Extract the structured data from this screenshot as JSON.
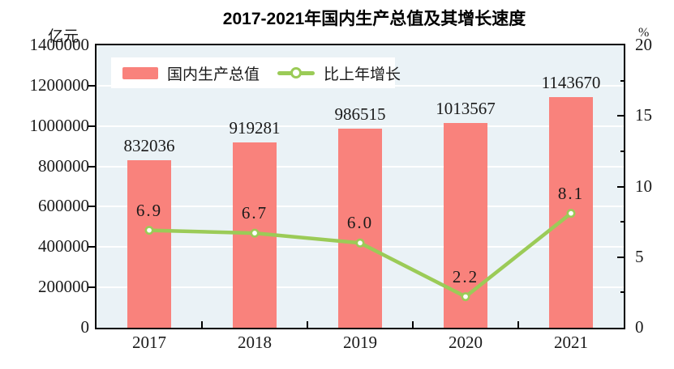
{
  "title": "2017-2021年国内生产总值及其增长速度",
  "left_unit": "亿元",
  "right_unit": "%",
  "chart_data": {
    "type": "bar",
    "subtype": "bar-and-line-dual-axis",
    "title": "2017-2021年国内生产总值及其增长速度",
    "categories": [
      "2017",
      "2018",
      "2019",
      "2020",
      "2021"
    ],
    "series": [
      {
        "name": "国内生产总值",
        "type": "bar",
        "axis": "left",
        "unit": "亿元",
        "values": [
          832036,
          919281,
          986515,
          1013567,
          1143670
        ],
        "value_labels": [
          "832036",
          "919281",
          "986515",
          "1013567",
          "1143670"
        ],
        "color": "#f9827c"
      },
      {
        "name": "比上年增长",
        "type": "line",
        "axis": "right",
        "unit": "%",
        "values": [
          6.9,
          6.7,
          6.0,
          2.2,
          8.1
        ],
        "value_labels": [
          "6.9",
          "6.7",
          "6.0",
          "2.2",
          "8.1"
        ],
        "color": "#9bcb57",
        "marker": "circle-white-fill"
      }
    ],
    "left_axis": {
      "label": "亿元",
      "min": 0,
      "max": 1400000,
      "tick_step": 200000,
      "tick_labels": [
        "0",
        "200000",
        "400000",
        "600000",
        "800000",
        "1000000",
        "1200000",
        "1400000"
      ]
    },
    "right_axis": {
      "label": "%",
      "min": 0,
      "max": 20,
      "tick_step": 5,
      "minor_tick_step": 2.5,
      "tick_labels": [
        "0",
        "5",
        "10",
        "15",
        "20"
      ]
    },
    "legend": [
      "国内生产总值",
      "比上年增长"
    ],
    "legend_position": "top-left-inside",
    "grid": true,
    "colors": {
      "plot_bg": "#eaf2f6",
      "grid": "#ffffff",
      "axis": "#000000",
      "text": "#1a1a1a",
      "bar": "#f9827c",
      "line": "#9bcb57"
    }
  }
}
